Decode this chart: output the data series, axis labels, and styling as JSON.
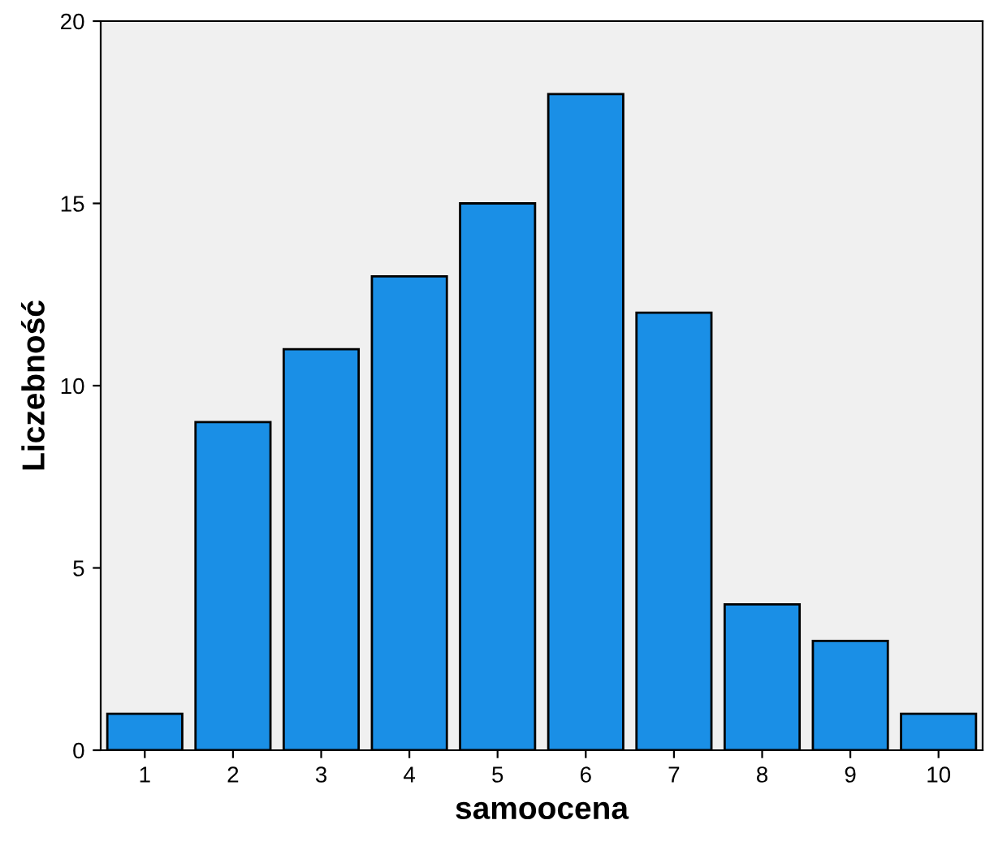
{
  "chart_data": {
    "type": "bar",
    "xlabel": "samoocena",
    "ylabel": "Liczebność",
    "categories": [
      "1",
      "2",
      "3",
      "4",
      "5",
      "6",
      "7",
      "8",
      "9",
      "10"
    ],
    "values": [
      1,
      9,
      11,
      13,
      15,
      18,
      12,
      4,
      3,
      1
    ],
    "color": "#1a8fe6",
    "ylim": [
      0,
      20
    ],
    "yticks": [
      0,
      5,
      10,
      15,
      20
    ],
    "grid": false,
    "legend": false
  }
}
